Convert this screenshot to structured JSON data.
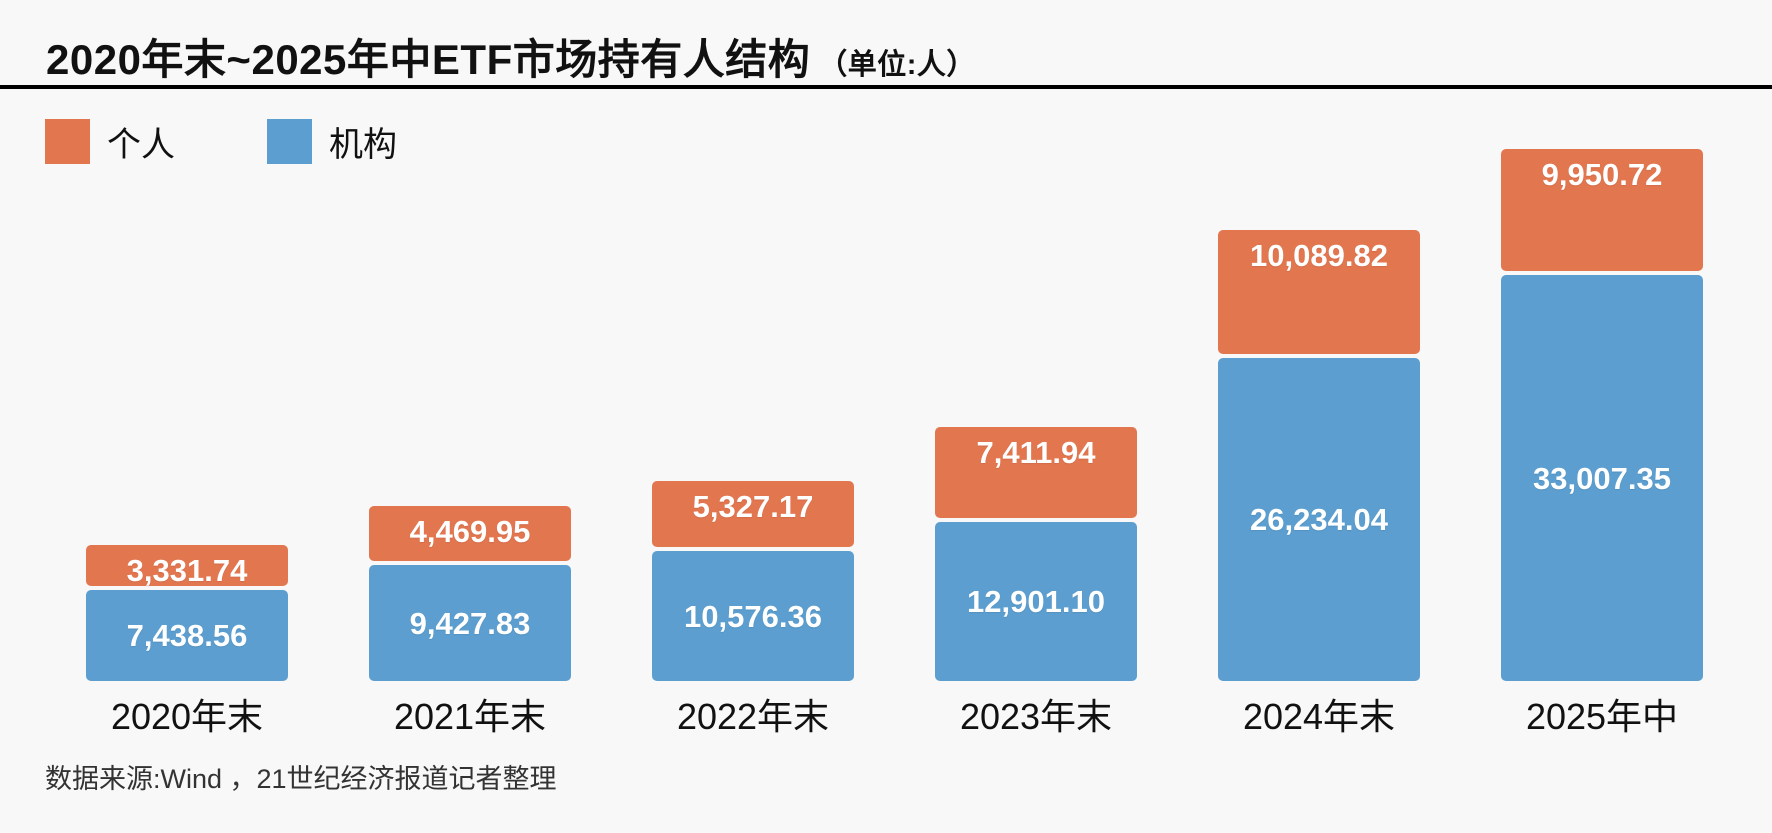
{
  "header": {
    "title": "2020年末~2025年中ETF市场持有人结构",
    "unit_label": "（单位:人）"
  },
  "legend": {
    "items": [
      {
        "label": "个人",
        "color": "#E2764F"
      },
      {
        "label": "机构",
        "color": "#5B9ECF"
      }
    ]
  },
  "chart_data": {
    "type": "bar",
    "stacked": true,
    "title": "2020年末~2025年中ETF市场持有人结构（单位:人）",
    "unit": "人",
    "categories": [
      "2020年末",
      "2021年末",
      "2022年末",
      "2023年末",
      "2024年末",
      "2025年中"
    ],
    "series": [
      {
        "name": "个人",
        "color": "#E2764F",
        "values": [
          3331.74,
          4469.95,
          5327.17,
          7411.94,
          10089.82,
          9950.72
        ]
      },
      {
        "name": "机构",
        "color": "#5B9ECF",
        "values": [
          7438.56,
          9427.83,
          10576.36,
          12901.1,
          26234.04,
          33007.35
        ]
      }
    ],
    "value_labels": [
      [
        "3,331.74",
        "4,469.95",
        "5,327.17",
        "7,411.94",
        "10,089.82",
        "9,950.72"
      ],
      [
        "7,438.56",
        "9,427.83",
        "10,576.36",
        "12,901.10",
        "26,234.04",
        "33,007.35"
      ]
    ],
    "xlabel": "",
    "ylabel": "",
    "grid": false,
    "axes_hidden": true,
    "legend_position": "top-left",
    "value_label_color": "#FFFFFF"
  },
  "footer": {
    "source": "数据来源:Wind ，21世纪经济报道记者整理"
  },
  "colors": {
    "individual": "#E2764F",
    "institution": "#5B9ECF",
    "background": "#F8F8F8",
    "divider": "#000000",
    "text": "#111111"
  }
}
